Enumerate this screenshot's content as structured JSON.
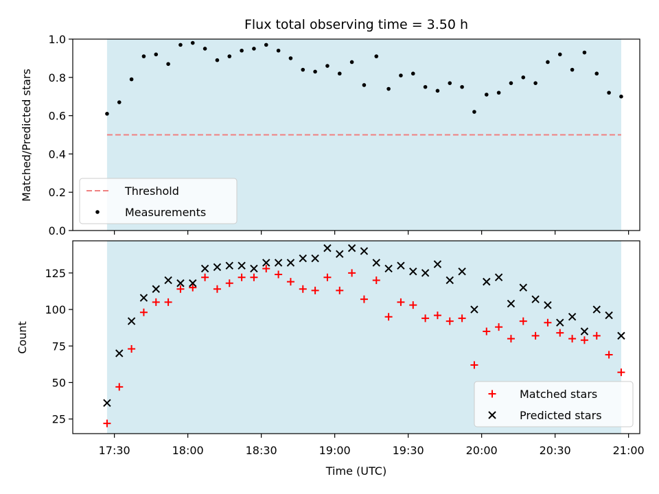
{
  "chart_data": {
    "title": "Flux total observing time = 3.50 h",
    "xlabel": "Time (UTC)",
    "x_ticks": [
      "17:30",
      "18:00",
      "18:30",
      "19:00",
      "19:30",
      "20:00",
      "20:30",
      "21:00"
    ],
    "shaded_interval": [
      "17:27",
      "20:57"
    ],
    "shade_color": "#add8e6",
    "panels": [
      {
        "type": "scatter",
        "ylabel": "Matched/Predicted stars",
        "ylim": [
          0.0,
          1.0
        ],
        "y_ticks": [
          "0.0",
          "0.2",
          "0.4",
          "0.6",
          "0.8",
          "1.0"
        ],
        "legend_position": "lower-left",
        "threshold": {
          "name": "Threshold",
          "value": 0.5,
          "color": "#f08080",
          "style": "dashed"
        },
        "series": [
          {
            "name": "Measurements",
            "marker": "dot",
            "color": "#000000",
            "x": [
              "17:27",
              "17:32",
              "17:37",
              "17:42",
              "17:47",
              "17:52",
              "17:57",
              "18:02",
              "18:07",
              "18:12",
              "18:17",
              "18:22",
              "18:27",
              "18:32",
              "18:37",
              "18:42",
              "18:47",
              "18:52",
              "18:57",
              "19:02",
              "19:07",
              "19:12",
              "19:17",
              "19:22",
              "19:27",
              "19:32",
              "19:37",
              "19:42",
              "19:47",
              "19:52",
              "19:57",
              "20:02",
              "20:07",
              "20:12",
              "20:17",
              "20:22",
              "20:27",
              "20:32",
              "20:37",
              "20:42",
              "20:47",
              "20:52",
              "20:57"
            ],
            "y": [
              0.61,
              0.67,
              0.79,
              0.91,
              0.92,
              0.87,
              0.97,
              0.98,
              0.95,
              0.89,
              0.91,
              0.94,
              0.95,
              0.97,
              0.94,
              0.9,
              0.84,
              0.83,
              0.86,
              0.82,
              0.88,
              0.76,
              0.91,
              0.74,
              0.81,
              0.82,
              0.75,
              0.73,
              0.77,
              0.75,
              0.62,
              0.71,
              0.72,
              0.77,
              0.8,
              0.77,
              0.88,
              0.92,
              0.84,
              0.93,
              0.82,
              0.72,
              0.7
            ]
          }
        ]
      },
      {
        "type": "scatter",
        "ylabel": "Count",
        "ylim": [
          15,
          147
        ],
        "y_ticks": [
          "25",
          "50",
          "75",
          "100",
          "125"
        ],
        "legend_position": "lower-right",
        "series": [
          {
            "name": "Matched stars",
            "marker": "plus",
            "color": "#ff0000",
            "x": [
              "17:27",
              "17:32",
              "17:37",
              "17:42",
              "17:47",
              "17:52",
              "17:57",
              "18:02",
              "18:07",
              "18:12",
              "18:17",
              "18:22",
              "18:27",
              "18:32",
              "18:37",
              "18:42",
              "18:47",
              "18:52",
              "18:57",
              "19:02",
              "19:07",
              "19:12",
              "19:17",
              "19:22",
              "19:27",
              "19:32",
              "19:37",
              "19:42",
              "19:47",
              "19:52",
              "19:57",
              "20:02",
              "20:07",
              "20:12",
              "20:17",
              "20:22",
              "20:27",
              "20:32",
              "20:37",
              "20:42",
              "20:47",
              "20:52",
              "20:57"
            ],
            "y": [
              22,
              47,
              73,
              98,
              105,
              105,
              114,
              115,
              122,
              114,
              118,
              122,
              122,
              128,
              124,
              119,
              114,
              113,
              122,
              113,
              125,
              107,
              120,
              95,
              105,
              103,
              94,
              96,
              92,
              94,
              62,
              85,
              88,
              80,
              92,
              82,
              91,
              84,
              80,
              79,
              82,
              69,
              57
            ]
          },
          {
            "name": "Predicted stars",
            "marker": "x",
            "color": "#000000",
            "x": [
              "17:27",
              "17:32",
              "17:37",
              "17:42",
              "17:47",
              "17:52",
              "17:57",
              "18:02",
              "18:07",
              "18:12",
              "18:17",
              "18:22",
              "18:27",
              "18:32",
              "18:37",
              "18:42",
              "18:47",
              "18:52",
              "18:57",
              "19:02",
              "19:07",
              "19:12",
              "19:17",
              "19:22",
              "19:27",
              "19:32",
              "19:37",
              "19:42",
              "19:47",
              "19:52",
              "19:57",
              "20:02",
              "20:07",
              "20:12",
              "20:17",
              "20:22",
              "20:27",
              "20:32",
              "20:37",
              "20:42",
              "20:47",
              "20:52",
              "20:57"
            ],
            "y": [
              36,
              70,
              92,
              108,
              114,
              120,
              118,
              118,
              128,
              129,
              130,
              130,
              128,
              132,
              132,
              132,
              135,
              135,
              142,
              138,
              142,
              140,
              132,
              128,
              130,
              126,
              125,
              131,
              120,
              126,
              100,
              119,
              122,
              104,
              115,
              107,
              103,
              91,
              95,
              85,
              100,
              96,
              82
            ]
          }
        ]
      }
    ]
  }
}
